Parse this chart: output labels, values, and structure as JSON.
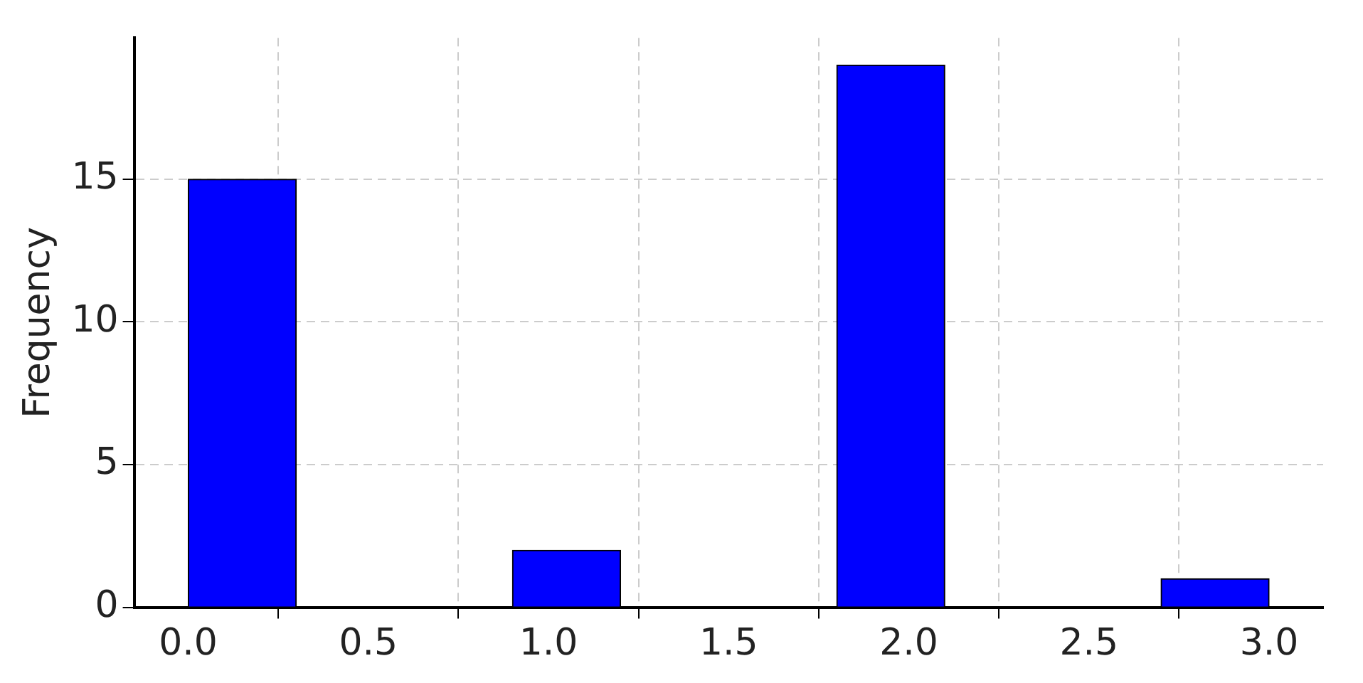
{
  "chart_data": {
    "type": "histogram",
    "ylabel": "Frequency",
    "bins": [
      0,
      0.3,
      0.6,
      0.9,
      1.2,
      1.5,
      1.8,
      2.1,
      2.4,
      2.7,
      3.0
    ],
    "values": [
      15,
      0,
      0,
      2,
      0,
      0,
      19,
      0,
      0,
      1
    ],
    "color": "#0000ff",
    "xlim": [
      -0.15,
      3.15
    ],
    "xticks": [
      {
        "value": 0,
        "label": "0.0"
      },
      {
        "value": 0.5,
        "label": "0.5"
      },
      {
        "value": 1,
        "label": "1.0"
      },
      {
        "value": 1.5,
        "label": "1.5"
      },
      {
        "value": 2,
        "label": "2.0"
      },
      {
        "value": 2.5,
        "label": "2.5"
      },
      {
        "value": 3,
        "label": "3.0"
      }
    ],
    "ylim": [
      0,
      19.95
    ],
    "yticks": [
      0,
      5,
      10,
      15
    ],
    "grid": true
  }
}
